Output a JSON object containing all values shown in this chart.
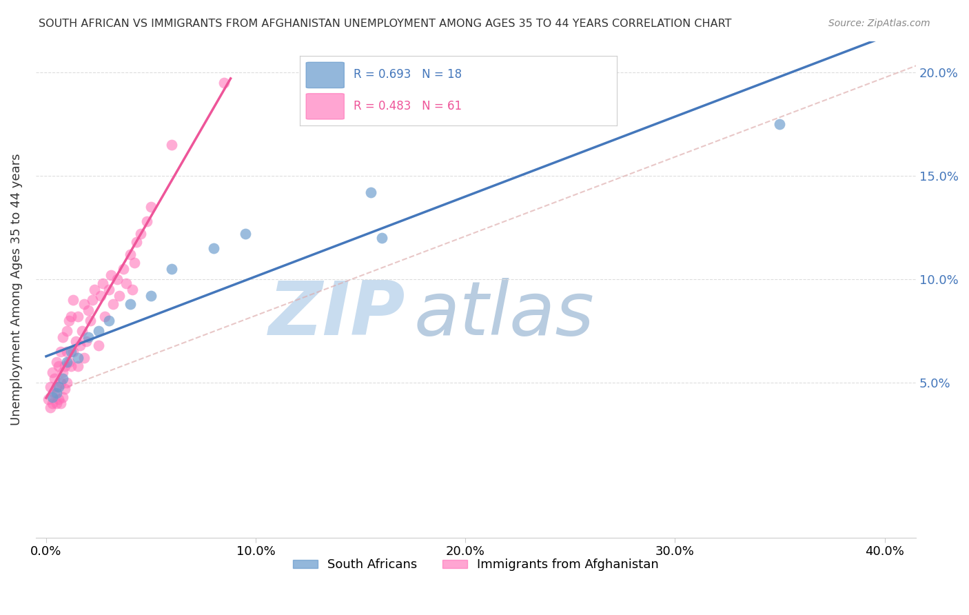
{
  "title": "SOUTH AFRICAN VS IMMIGRANTS FROM AFGHANISTAN UNEMPLOYMENT AMONG AGES 35 TO 44 YEARS CORRELATION CHART",
  "source": "Source: ZipAtlas.com",
  "xlabel_ticks": [
    "0.0%",
    "10.0%",
    "20.0%",
    "30.0%",
    "40.0%"
  ],
  "xlabel_vals": [
    0.0,
    0.1,
    0.2,
    0.3,
    0.4
  ],
  "ylabel_ticks": [
    "5.0%",
    "10.0%",
    "15.0%",
    "20.0%"
  ],
  "ylabel_vals": [
    0.05,
    0.1,
    0.15,
    0.2
  ],
  "ylabel_label": "Unemployment Among Ages 35 to 44 years",
  "xlim": [
    -0.005,
    0.415
  ],
  "ylim": [
    -0.025,
    0.215
  ],
  "legend_blue_label": "South Africans",
  "legend_pink_label": "Immigrants from Afghanistan",
  "R_blue": 0.693,
  "N_blue": 18,
  "R_pink": 0.483,
  "N_pink": 61,
  "blue_color": "#6699CC",
  "pink_color": "#FF69B4",
  "blue_line_color": "#4477BB",
  "pink_line_color": "#EE5599",
  "watermark_zip": "ZIP",
  "watermark_atlas": "atlas",
  "blue_x": [
    0.003,
    0.005,
    0.006,
    0.008,
    0.01,
    0.012,
    0.015,
    0.02,
    0.025,
    0.03,
    0.04,
    0.05,
    0.06,
    0.08,
    0.095,
    0.155,
    0.16,
    0.35
  ],
  "blue_y": [
    0.043,
    0.045,
    0.048,
    0.052,
    0.06,
    0.065,
    0.062,
    0.072,
    0.075,
    0.08,
    0.088,
    0.092,
    0.105,
    0.115,
    0.122,
    0.142,
    0.12,
    0.175
  ],
  "pink_x": [
    0.001,
    0.002,
    0.002,
    0.003,
    0.003,
    0.004,
    0.004,
    0.005,
    0.005,
    0.005,
    0.006,
    0.006,
    0.007,
    0.007,
    0.007,
    0.008,
    0.008,
    0.008,
    0.009,
    0.009,
    0.01,
    0.01,
    0.01,
    0.011,
    0.011,
    0.012,
    0.012,
    0.013,
    0.013,
    0.014,
    0.015,
    0.015,
    0.016,
    0.017,
    0.018,
    0.018,
    0.019,
    0.02,
    0.021,
    0.022,
    0.023,
    0.025,
    0.026,
    0.027,
    0.028,
    0.03,
    0.031,
    0.032,
    0.034,
    0.035,
    0.037,
    0.038,
    0.04,
    0.041,
    0.042,
    0.043,
    0.045,
    0.048,
    0.05,
    0.06,
    0.085
  ],
  "pink_y": [
    0.042,
    0.038,
    0.048,
    0.04,
    0.055,
    0.045,
    0.052,
    0.04,
    0.048,
    0.06,
    0.042,
    0.058,
    0.04,
    0.05,
    0.065,
    0.043,
    0.055,
    0.072,
    0.047,
    0.058,
    0.05,
    0.065,
    0.075,
    0.06,
    0.08,
    0.058,
    0.082,
    0.065,
    0.09,
    0.07,
    0.058,
    0.082,
    0.068,
    0.075,
    0.062,
    0.088,
    0.07,
    0.085,
    0.08,
    0.09,
    0.095,
    0.068,
    0.092,
    0.098,
    0.082,
    0.095,
    0.102,
    0.088,
    0.1,
    0.092,
    0.105,
    0.098,
    0.112,
    0.095,
    0.108,
    0.118,
    0.122,
    0.128,
    0.135,
    0.165,
    0.195
  ]
}
